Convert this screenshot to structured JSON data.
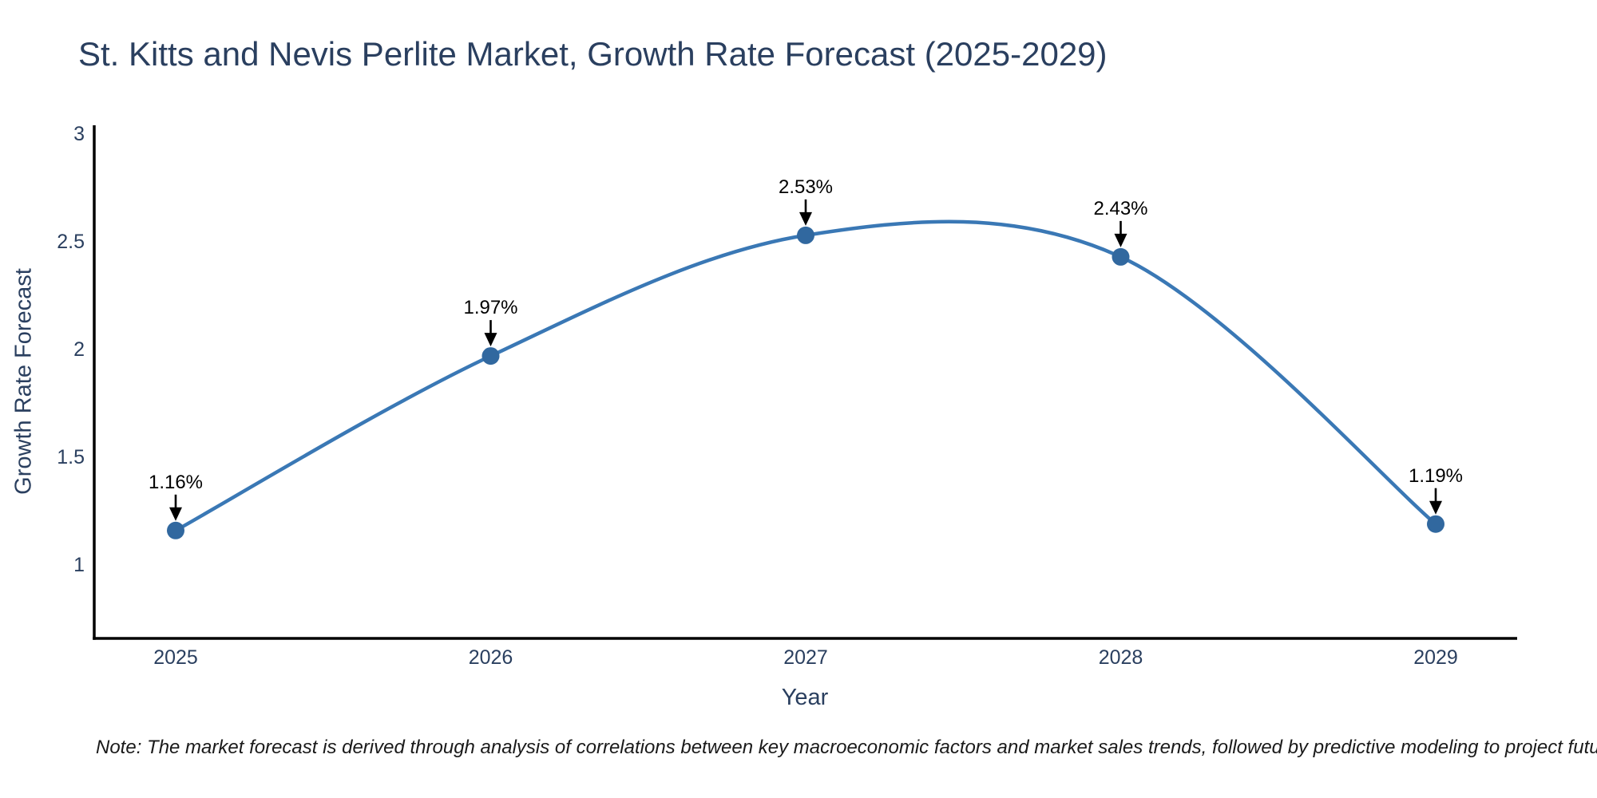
{
  "title": "St. Kitts and Nevis Perlite Market, Growth Rate Forecast (2025-2029)",
  "footnote": "Note: The market forecast is derived through analysis of correlations between key macroeconomic factors and market sales trends, followed by predictive modeling to project future sales",
  "chart_data": {
    "type": "line",
    "title": "St. Kitts and Nevis Perlite Market, Growth Rate Forecast (2025-2029)",
    "xlabel": "Year",
    "ylabel": "Growth Rate Forecast",
    "categories": [
      "2025",
      "2026",
      "2027",
      "2028",
      "2029"
    ],
    "series": [
      {
        "name": "Growth Rate Forecast",
        "values": [
          1.16,
          1.97,
          2.53,
          2.43,
          1.19
        ]
      }
    ],
    "point_labels": [
      "1.16%",
      "1.97%",
      "2.53%",
      "2.43%",
      "1.19%"
    ],
    "yticks": [
      1,
      1.5,
      2,
      2.5,
      3
    ],
    "ylim": [
      0.66,
      3.03
    ],
    "line_shape": "spline",
    "grid": false,
    "legend_visible": false,
    "annotation_arrows": true,
    "colors": {
      "line": "#3a78b5",
      "marker": "#31689f",
      "axis": "#000000",
      "tick_text": "#2a3f5f",
      "title_text": "#2a3f5f",
      "annotation_text": "#000000"
    }
  }
}
